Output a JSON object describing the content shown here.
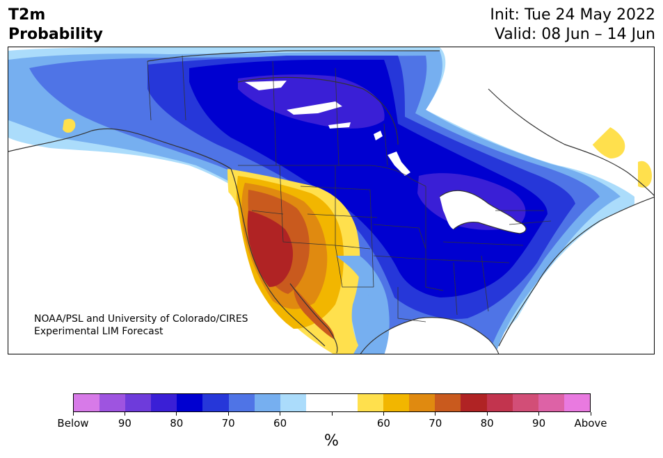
{
  "header": {
    "title_line1": "T2m",
    "title_line2": "Probability",
    "init": "Init: Tue 24 May 2022",
    "valid": "Valid: 08 Jun – 14 Jun"
  },
  "credit": {
    "line1": "NOAA/PSL and University of Colorado/CIRES",
    "line2": "Experimental LIM Forecast"
  },
  "colorbar": {
    "colors": [
      "#d77ae8",
      "#9e54e0",
      "#6e3bdb",
      "#3a1fd6",
      "#0000d0",
      "#2637d9",
      "#4f74e6",
      "#76aff0",
      "#abdcfb",
      "#ffffff",
      "#ffffff",
      "#ffe04d",
      "#f2b600",
      "#e08a10",
      "#c95a1e",
      "#b02324",
      "#c2344e",
      "#d24e77",
      "#dd62a6",
      "#e97ae0"
    ],
    "tick_labels": [
      "Below",
      "90",
      "80",
      "70",
      "60",
      "",
      "60",
      "70",
      "80",
      "90",
      "Above"
    ],
    "unit": "%"
  },
  "legend_categories": {
    "below_colors": [
      "#0000d0",
      "#2637d9",
      "#4f74e6",
      "#76aff0",
      "#abdcfb",
      "#6e3bdb",
      "#3a1fd6"
    ],
    "above_colors": [
      "#ffe04d",
      "#f2b600",
      "#e08a10",
      "#c95a1e",
      "#b02324"
    ]
  }
}
